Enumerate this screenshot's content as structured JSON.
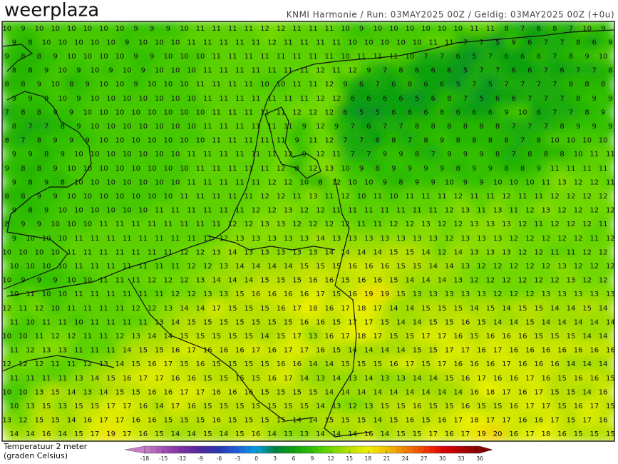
{
  "header": {
    "logo": "weerplaza",
    "info": "KNMI Harmonie / Run: 03MAY2025 00Z / Geldig: 03MAY2025 00Z (+0u)"
  },
  "legend": {
    "title_line1": "Temperatuur 2 meter",
    "title_line2": "(graden Celsius)",
    "ticks": [
      -18,
      -15,
      -12,
      -9,
      -6,
      -3,
      0,
      3,
      6,
      9,
      12,
      15,
      18,
      21,
      24,
      27,
      30,
      33,
      36
    ],
    "colors": [
      "#c880c8",
      "#a050b0",
      "#7830a0",
      "#5028a0",
      "#2838b0",
      "#2060d8",
      "#00a0e0",
      "#008040",
      "#10a010",
      "#30c000",
      "#70d800",
      "#b8e000",
      "#f0f000",
      "#f0c000",
      "#f08000",
      "#f04000",
      "#e00000",
      "#b00000",
      "#800000"
    ]
  },
  "grid": {
    "rows": [
      [
        10,
        9,
        10,
        10,
        10,
        10,
        10,
        10,
        9,
        9,
        9,
        10,
        11,
        11,
        11,
        11,
        12,
        12,
        11,
        11,
        11,
        10,
        9,
        10,
        10,
        10,
        10,
        10,
        10,
        11,
        11,
        8,
        7,
        6,
        8,
        7,
        10,
        9
      ],
      [
        9,
        8,
        10,
        10,
        10,
        10,
        10,
        9,
        10,
        10,
        10,
        11,
        11,
        11,
        11,
        11,
        12,
        11,
        11,
        11,
        11,
        10,
        10,
        10,
        10,
        10,
        11,
        11,
        7,
        7,
        5,
        9,
        6,
        7,
        7,
        8,
        6,
        9
      ],
      [
        9,
        8,
        8,
        9,
        10,
        10,
        10,
        10,
        9,
        9,
        10,
        10,
        10,
        11,
        11,
        11,
        11,
        11,
        11,
        11,
        11,
        10,
        11,
        11,
        11,
        10,
        7,
        7,
        6,
        5,
        7,
        6,
        6,
        8,
        7,
        8,
        9,
        10
      ],
      [
        8,
        8,
        9,
        10,
        9,
        10,
        9,
        10,
        9,
        10,
        10,
        10,
        11,
        11,
        11,
        11,
        11,
        11,
        11,
        12,
        11,
        12,
        9,
        7,
        8,
        6,
        6,
        6,
        5,
        7,
        7,
        6,
        6,
        7,
        6,
        7,
        7,
        8
      ],
      [
        8,
        8,
        9,
        10,
        8,
        9,
        10,
        10,
        9,
        10,
        10,
        10,
        11,
        11,
        11,
        11,
        10,
        10,
        11,
        11,
        12,
        9,
        6,
        7,
        6,
        8,
        6,
        6,
        5,
        7,
        5,
        7,
        7,
        7,
        7,
        8,
        8,
        8
      ],
      [
        9,
        9,
        9,
        10,
        9,
        10,
        10,
        10,
        10,
        10,
        10,
        10,
        11,
        11,
        11,
        11,
        11,
        11,
        11,
        12,
        12,
        6,
        6,
        6,
        6,
        5,
        6,
        8,
        7,
        5,
        6,
        6,
        7,
        7,
        7,
        8,
        9,
        9
      ],
      [
        7,
        8,
        8,
        9,
        9,
        10,
        10,
        10,
        10,
        10,
        10,
        10,
        10,
        11,
        11,
        11,
        11,
        11,
        12,
        12,
        12,
        6,
        5,
        5,
        6,
        6,
        6,
        8,
        6,
        6,
        6,
        9,
        10,
        6,
        7,
        7,
        8,
        9
      ],
      [
        8,
        7,
        7,
        8,
        9,
        10,
        10,
        10,
        10,
        10,
        10,
        10,
        11,
        11,
        11,
        11,
        11,
        11,
        9,
        12,
        9,
        7,
        6,
        7,
        7,
        8,
        8,
        8,
        8,
        8,
        8,
        7,
        7,
        7,
        8,
        9,
        9,
        9
      ],
      [
        8,
        7,
        8,
        9,
        9,
        9,
        10,
        10,
        10,
        10,
        10,
        10,
        10,
        11,
        11,
        11,
        11,
        11,
        9,
        11,
        12,
        7,
        7,
        6,
        8,
        7,
        8,
        9,
        8,
        8,
        8,
        8,
        7,
        8,
        10,
        10,
        10,
        10
      ],
      [
        9,
        9,
        8,
        9,
        10,
        10,
        10,
        10,
        10,
        10,
        10,
        11,
        11,
        11,
        11,
        11,
        11,
        12,
        9,
        12,
        11,
        7,
        7,
        9,
        9,
        8,
        7,
        9,
        9,
        9,
        8,
        7,
        8,
        8,
        8,
        10,
        11,
        11
      ],
      [
        9,
        8,
        8,
        9,
        10,
        10,
        10,
        10,
        10,
        10,
        10,
        10,
        11,
        11,
        11,
        11,
        11,
        12,
        8,
        12,
        13,
        10,
        9,
        8,
        9,
        9,
        9,
        9,
        8,
        9,
        9,
        8,
        8,
        9,
        11,
        11,
        11,
        11
      ],
      [
        9,
        8,
        9,
        8,
        10,
        10,
        10,
        10,
        10,
        10,
        10,
        11,
        11,
        11,
        11,
        11,
        12,
        12,
        10,
        8,
        12,
        10,
        10,
        9,
        8,
        9,
        9,
        10,
        9,
        9,
        10,
        10,
        10,
        11,
        13,
        12,
        12,
        11
      ],
      [
        8,
        8,
        9,
        9,
        10,
        10,
        10,
        10,
        10,
        10,
        10,
        11,
        11,
        11,
        11,
        11,
        12,
        12,
        11,
        13,
        11,
        12,
        10,
        11,
        10,
        11,
        11,
        11,
        12,
        11,
        11,
        12,
        11,
        11,
        12,
        12,
        12,
        12
      ],
      [
        9,
        8,
        9,
        10,
        10,
        10,
        10,
        10,
        10,
        11,
        11,
        11,
        11,
        11,
        11,
        12,
        12,
        13,
        12,
        12,
        11,
        11,
        11,
        11,
        11,
        11,
        11,
        12,
        13,
        11,
        13,
        11,
        12,
        13,
        12,
        12,
        12,
        12
      ],
      [
        8,
        9,
        9,
        10,
        10,
        10,
        11,
        11,
        11,
        11,
        11,
        11,
        11,
        11,
        12,
        12,
        13,
        13,
        12,
        12,
        12,
        12,
        11,
        11,
        12,
        12,
        13,
        12,
        12,
        13,
        13,
        13,
        12,
        11,
        12,
        12,
        12,
        11
      ],
      [
        9,
        10,
        10,
        10,
        11,
        11,
        11,
        11,
        11,
        11,
        11,
        11,
        11,
        12,
        13,
        13,
        13,
        13,
        13,
        14,
        13,
        13,
        13,
        13,
        13,
        13,
        13,
        12,
        13,
        13,
        13,
        12,
        12,
        12,
        12,
        12,
        11,
        12
      ],
      [
        10,
        10,
        10,
        10,
        11,
        11,
        11,
        11,
        11,
        11,
        11,
        12,
        12,
        13,
        14,
        13,
        13,
        13,
        13,
        13,
        14,
        14,
        14,
        14,
        15,
        15,
        14,
        12,
        14,
        13,
        13,
        13,
        12,
        12,
        11,
        11,
        12,
        12
      ],
      [
        10,
        10,
        10,
        10,
        11,
        11,
        11,
        11,
        11,
        11,
        11,
        12,
        12,
        13,
        14,
        14,
        14,
        14,
        15,
        15,
        15,
        16,
        16,
        16,
        15,
        15,
        14,
        14,
        13,
        12,
        12,
        12,
        12,
        12,
        13,
        12,
        12,
        12
      ],
      [
        10,
        9,
        9,
        9,
        10,
        10,
        11,
        11,
        11,
        12,
        12,
        12,
        13,
        14,
        14,
        14,
        15,
        15,
        15,
        16,
        16,
        15,
        16,
        16,
        15,
        14,
        14,
        14,
        13,
        12,
        12,
        12,
        12,
        12,
        12,
        13,
        12,
        12
      ],
      [
        10,
        11,
        10,
        10,
        11,
        11,
        11,
        11,
        11,
        11,
        12,
        12,
        13,
        13,
        15,
        16,
        16,
        16,
        16,
        17,
        15,
        16,
        19,
        19,
        15,
        13,
        13,
        13,
        13,
        13,
        12,
        12,
        12,
        13,
        13,
        13,
        13,
        13
      ],
      [
        12,
        11,
        12,
        10,
        11,
        11,
        11,
        11,
        12,
        12,
        13,
        14,
        14,
        17,
        15,
        15,
        15,
        16,
        17,
        18,
        16,
        17,
        18,
        17,
        14,
        14,
        15,
        15,
        15,
        14,
        15,
        14,
        15,
        15,
        14,
        14,
        15,
        14
      ],
      [
        11,
        10,
        11,
        11,
        10,
        11,
        11,
        11,
        11,
        13,
        14,
        15,
        15,
        15,
        15,
        15,
        15,
        15,
        16,
        16,
        15,
        17,
        17,
        15,
        14,
        14,
        15,
        15,
        16,
        15,
        14,
        14,
        15,
        14,
        14,
        14,
        14,
        14
      ],
      [
        10,
        10,
        11,
        12,
        12,
        11,
        11,
        12,
        13,
        14,
        14,
        15,
        15,
        15,
        15,
        15,
        14,
        15,
        17,
        13,
        16,
        17,
        18,
        17,
        15,
        15,
        17,
        17,
        16,
        15,
        16,
        16,
        16,
        15,
        15,
        15,
        14,
        14
      ],
      [
        11,
        12,
        13,
        13,
        11,
        11,
        11,
        14,
        15,
        15,
        16,
        17,
        16,
        16,
        16,
        17,
        16,
        17,
        17,
        16,
        15,
        14,
        14,
        14,
        14,
        15,
        15,
        17,
        17,
        16,
        17,
        16,
        16,
        16,
        16,
        16,
        16,
        16
      ],
      [
        12,
        12,
        12,
        11,
        11,
        12,
        13,
        14,
        15,
        16,
        17,
        15,
        16,
        15,
        15,
        15,
        15,
        16,
        16,
        14,
        14,
        15,
        15,
        15,
        16,
        17,
        15,
        17,
        16,
        16,
        16,
        17,
        16,
        16,
        16,
        14,
        14,
        14
      ],
      [
        11,
        11,
        11,
        11,
        13,
        14,
        15,
        16,
        17,
        17,
        16,
        16,
        15,
        15,
        15,
        15,
        16,
        17,
        14,
        13,
        14,
        13,
        14,
        13,
        13,
        14,
        14,
        15,
        16,
        17,
        16,
        16,
        17,
        16,
        15,
        16,
        16,
        15
      ],
      [
        10,
        10,
        13,
        15,
        14,
        13,
        14,
        15,
        15,
        16,
        16,
        17,
        17,
        16,
        16,
        16,
        15,
        15,
        15,
        15,
        14,
        14,
        14,
        14,
        14,
        14,
        14,
        14,
        14,
        16,
        18,
        17,
        16,
        17,
        15,
        15,
        14,
        16
      ],
      [
        10,
        13,
        15,
        13,
        15,
        15,
        17,
        17,
        16,
        14,
        17,
        16,
        15,
        15,
        15,
        15,
        15,
        15,
        15,
        14,
        13,
        12,
        13,
        15,
        15,
        16,
        15,
        15,
        16,
        15,
        15,
        16,
        17,
        17,
        15,
        16,
        17,
        15
      ],
      [
        13,
        12,
        15,
        15,
        14,
        16,
        17,
        17,
        16,
        16,
        15,
        15,
        15,
        16,
        15,
        15,
        15,
        15,
        14,
        14,
        15,
        15,
        15,
        14,
        15,
        16,
        15,
        16,
        17,
        18,
        17,
        17,
        16,
        16,
        17,
        15,
        17,
        16
      ],
      [
        14,
        14,
        16,
        14,
        15,
        17,
        19,
        17,
        16,
        15,
        14,
        14,
        15,
        14,
        15,
        16,
        14,
        13,
        13,
        14,
        14,
        14,
        16,
        14,
        15,
        15,
        17,
        16,
        17,
        19,
        20,
        16,
        17,
        18,
        16,
        15,
        15,
        15
      ]
    ]
  }
}
